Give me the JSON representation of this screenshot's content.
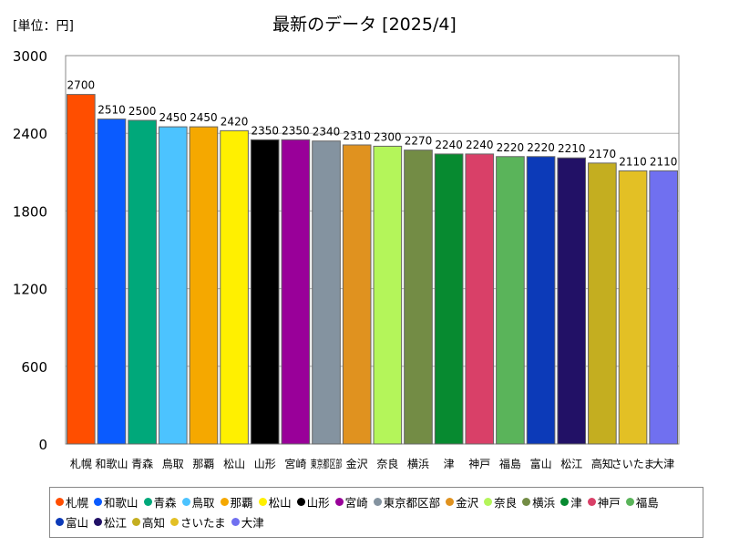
{
  "unit_label": "[単位：円]",
  "colors": {
    "札幌": "#ff4e00",
    "和歌山": "#0a5bff",
    "青森": "#00a87a",
    "鳥取": "#4cc3ff",
    "那覇": "#f5a800",
    "松山": "#fff000",
    "山形": "#000000",
    "宮崎": "#990099",
    "東京都区部": "#8493a0",
    "金沢": "#e0921f",
    "奈良": "#b4f55a",
    "横浜": "#738c45",
    "津": "#078a30",
    "神戸": "#d94068",
    "福島": "#5ab45a",
    "富山": "#0c3ab8",
    "松江": "#221166",
    "高知": "#c4ae20",
    "さいたま": "#e3c025",
    "大津": "#7070f0"
  },
  "chart_data": {
    "type": "bar",
    "title": "最新のデータ [2025/4]",
    "xlabel": "",
    "ylabel": "",
    "ylim": [
      0,
      3000
    ],
    "yticks": [
      0,
      600,
      1200,
      1800,
      2400,
      3000
    ],
    "grid": true,
    "legend_position": "bottom",
    "categories": [
      "札幌",
      "和歌山",
      "青森",
      "鳥取",
      "那覇",
      "松山",
      "山形",
      "宮崎",
      "東京都区部",
      "金沢",
      "奈良",
      "横浜",
      "津",
      "神戸",
      "福島",
      "富山",
      "松江",
      "高知",
      "さいたま",
      "大津"
    ],
    "tick_labels": [
      "札幌",
      "和歌山",
      "青森",
      "鳥取",
      "那覇",
      "松山",
      "山形",
      "宮崎",
      "東京都区部",
      "金沢",
      "奈良",
      "横浜",
      "津",
      "神戸",
      "福島",
      "富山",
      "松江",
      "高知",
      "さいたま",
      "大津"
    ],
    "values": [
      2700,
      2510,
      2500,
      2450,
      2450,
      2420,
      2350,
      2350,
      2340,
      2310,
      2300,
      2270,
      2240,
      2240,
      2220,
      2220,
      2210,
      2170,
      2110,
      2110
    ]
  }
}
